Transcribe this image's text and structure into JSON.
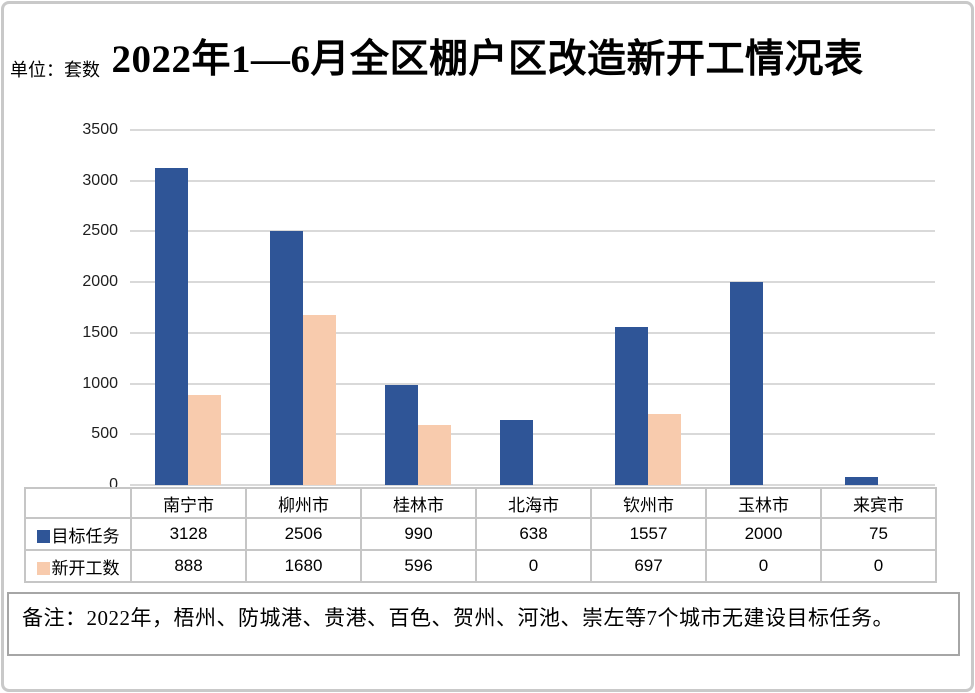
{
  "chart_data": {
    "type": "bar",
    "title": "2022年1—6月全区棚户区改造新开工情况表",
    "unit_label": "单位：套数",
    "categories": [
      "南宁市",
      "柳州市",
      "桂林市",
      "北海市",
      "钦州市",
      "玉林市",
      "来宾市"
    ],
    "series": [
      {
        "name": "目标任务",
        "color": "#2F5597",
        "values": [
          3128,
          2506,
          990,
          638,
          1557,
          2000,
          75
        ]
      },
      {
        "name": "新开工数",
        "color": "#F8CBAD",
        "values": [
          888,
          1680,
          596,
          0,
          697,
          0,
          0
        ]
      }
    ],
    "ylim": [
      0,
      3500
    ],
    "ytick_step": 500,
    "ytick_labels": [
      "0",
      "500",
      "1000",
      "1500",
      "2000",
      "2500",
      "3000",
      "3500"
    ],
    "xlabel": "",
    "ylabel": "",
    "grid": true,
    "gridline_color": "#D9D9D9",
    "legend_position": "data-table-row-headers"
  },
  "note": "备注：2022年，梧州、防城港、贵港、百色、贺州、河池、崇左等7个城市无建设目标任务。"
}
